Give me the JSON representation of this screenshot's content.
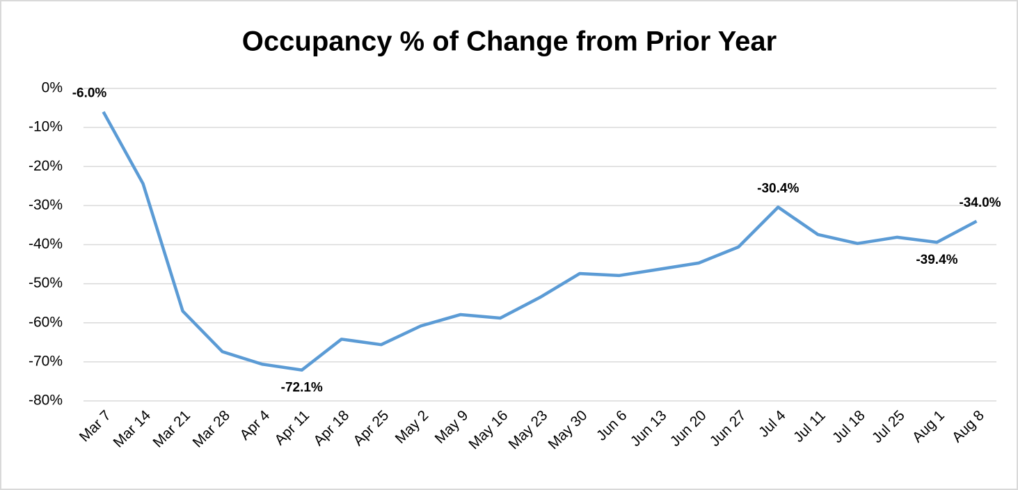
{
  "chart_data": {
    "type": "line",
    "title": "Occupancy % of Change from Prior Year",
    "categories": [
      "Mar 7",
      "Mar 14",
      "Mar 21",
      "Mar 28",
      "Apr 4",
      "Apr 11",
      "Apr 18",
      "Apr 25",
      "May 2",
      "May 9",
      "May 16",
      "May 23",
      "May 30",
      "Jun 6",
      "Jun 13",
      "Jun 20",
      "Jun 27",
      "Jul 4",
      "Jul 11",
      "Jul 18",
      "Jul 25",
      "Aug 1",
      "Aug 8"
    ],
    "series": [
      {
        "name": "Occupancy % change",
        "color": "#5b9bd5",
        "values": [
          -6.0,
          -24.4,
          -57.0,
          -67.4,
          -70.6,
          -72.1,
          -64.2,
          -65.6,
          -60.8,
          -57.9,
          -58.8,
          -53.5,
          -47.4,
          -47.9,
          -46.3,
          -44.7,
          -40.6,
          -30.4,
          -37.4,
          -39.7,
          -38.1,
          -39.4,
          -34.0
        ],
        "value_labels": [
          "-6.0%",
          null,
          null,
          null,
          null,
          "-72.1%",
          null,
          null,
          null,
          null,
          null,
          null,
          null,
          null,
          null,
          null,
          null,
          "-30.4%",
          null,
          null,
          null,
          "-39.4%",
          "-34.0%"
        ]
      }
    ],
    "ylim": [
      -80,
      0
    ],
    "yticks": [
      {
        "value": 0,
        "label": "0%"
      },
      {
        "value": -10,
        "label": "-10%"
      },
      {
        "value": -20,
        "label": "-20%"
      },
      {
        "value": -30,
        "label": "-30%"
      },
      {
        "value": -40,
        "label": "-40%"
      },
      {
        "value": -50,
        "label": "-50%"
      },
      {
        "value": -60,
        "label": "-60%"
      },
      {
        "value": -70,
        "label": "-70%"
      },
      {
        "value": -80,
        "label": "-80%"
      }
    ],
    "grid": true
  }
}
